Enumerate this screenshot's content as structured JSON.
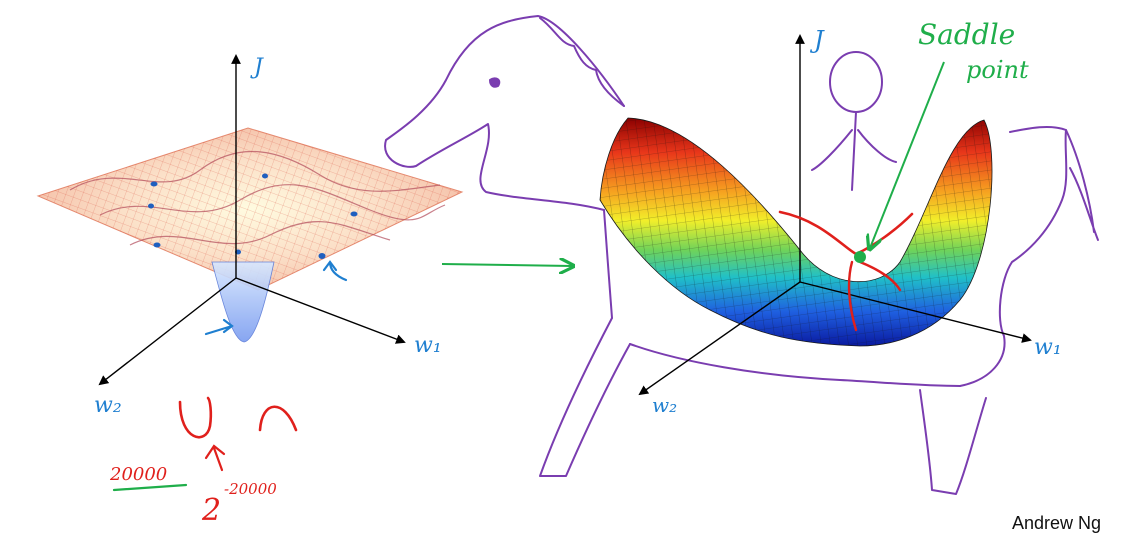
{
  "left_plot": {
    "axis_j": "J",
    "axis_w1": "w₁",
    "axis_w2": "w₂"
  },
  "right_plot": {
    "axis_j": "J",
    "axis_w1": "w₁",
    "axis_w2": "w₂",
    "saddle_label_line1": "Saddle",
    "saddle_label_line2": "point"
  },
  "notes": {
    "number": "20000",
    "base": "2",
    "exponent": "-20000"
  },
  "credit": "Andrew Ng",
  "colors": {
    "ink_blue": "#1f7fd0",
    "ink_red": "#e0201c",
    "ink_green": "#1fae4a",
    "ink_purple": "#7a3db0"
  }
}
